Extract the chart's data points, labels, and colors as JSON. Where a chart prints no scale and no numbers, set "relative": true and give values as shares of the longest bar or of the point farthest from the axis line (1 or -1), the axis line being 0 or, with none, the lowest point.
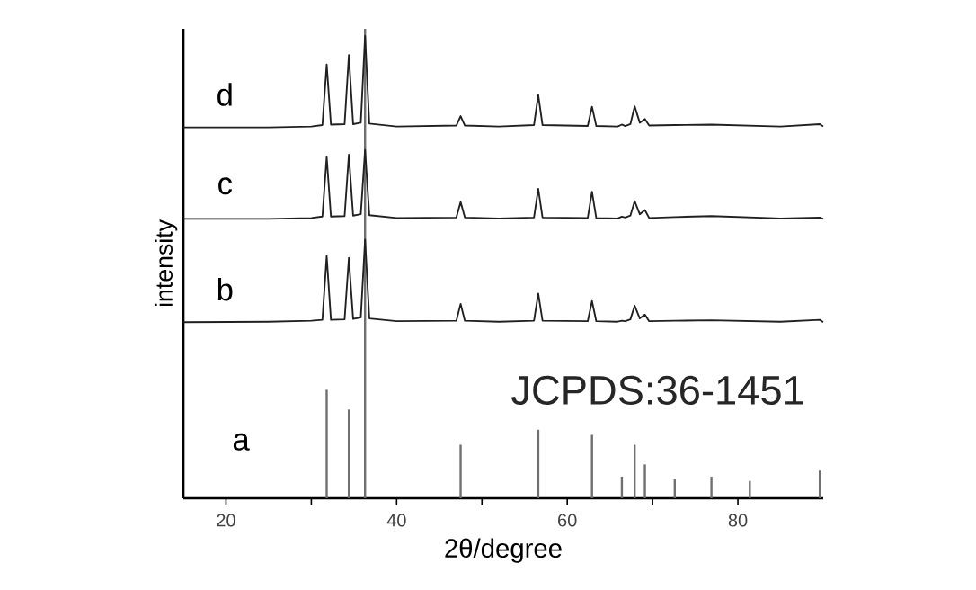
{
  "chart_data": {
    "type": "line",
    "relative": true,
    "xlabel": "2θ/degree",
    "ylabel": "intensity",
    "xlim": [
      15,
      90
    ],
    "xticks": [
      20,
      40,
      60,
      80,
      {
        "value": 30,
        "label": null
      },
      {
        "value": 50,
        "label": null
      },
      {
        "value": 70,
        "label": null
      }
    ],
    "marker": "none",
    "annotations": [
      "JCPDS:36-1451"
    ],
    "series": [
      {
        "name": "a",
        "type": "bar",
        "color": "#707070",
        "x": [
          31.8,
          34.4,
          36.3,
          47.5,
          56.6,
          62.9,
          66.4,
          67.9,
          69.1,
          72.6,
          76.9,
          81.4,
          89.6
        ],
        "values": [
          0.231,
          0.189,
          1.0,
          0.114,
          0.146,
          0.135,
          0.046,
          0.114,
          0.072,
          0.04,
          0.046,
          0.037,
          0.059
        ]
      },
      {
        "name": "b",
        "color": "#202020",
        "x": [
          15,
          25,
          30,
          31.3,
          31.8,
          32.3,
          33.9,
          34.4,
          34.9,
          35.8,
          36.3,
          36.8,
          40,
          47.0,
          47.5,
          48.0,
          52,
          56.1,
          56.6,
          57.1,
          62.4,
          62.9,
          63.4,
          65.9,
          66.4,
          66.8,
          67.4,
          67.9,
          68.5,
          69.1,
          69.6,
          72.6,
          76.9,
          85,
          89.6,
          90
        ],
        "values": [
          0.375,
          0.376,
          0.378,
          0.38,
          0.516,
          0.38,
          0.381,
          0.512,
          0.382,
          0.385,
          0.551,
          0.383,
          0.377,
          0.378,
          0.414,
          0.378,
          0.376,
          0.378,
          0.436,
          0.378,
          0.377,
          0.42,
          0.377,
          0.376,
          0.378,
          0.377,
          0.381,
          0.41,
          0.383,
          0.391,
          0.377,
          0.378,
          0.379,
          0.376,
          0.38,
          0.375
        ]
      },
      {
        "name": "c",
        "color": "#202020",
        "x": [
          15,
          25,
          30,
          31.3,
          31.8,
          32.3,
          33.9,
          34.4,
          34.9,
          35.8,
          36.3,
          36.8,
          40,
          47.0,
          47.5,
          48.0,
          52,
          56.1,
          56.6,
          57.1,
          62.4,
          62.9,
          63.4,
          65.9,
          66.4,
          66.8,
          67.4,
          67.9,
          68.5,
          69.1,
          69.6,
          72.6,
          76.9,
          85,
          89.6,
          90
        ],
        "values": [
          0.595,
          0.595,
          0.597,
          0.6,
          0.727,
          0.6,
          0.601,
          0.732,
          0.602,
          0.605,
          0.742,
          0.603,
          0.597,
          0.598,
          0.631,
          0.598,
          0.596,
          0.598,
          0.659,
          0.598,
          0.597,
          0.653,
          0.597,
          0.596,
          0.6,
          0.598,
          0.602,
          0.633,
          0.605,
          0.614,
          0.597,
          0.599,
          0.601,
          0.596,
          0.598,
          0.595
        ]
      },
      {
        "name": "d",
        "color": "#202020",
        "x": [
          15,
          25,
          30,
          31.3,
          31.8,
          32.3,
          33.9,
          34.4,
          34.9,
          35.8,
          36.3,
          36.8,
          40,
          47.0,
          47.5,
          48.0,
          52,
          56.1,
          56.6,
          57.1,
          62.4,
          62.9,
          63.4,
          65.9,
          66.4,
          66.8,
          67.4,
          67.9,
          68.5,
          69.1,
          69.6,
          72.6,
          76.9,
          85,
          89.6,
          90
        ],
        "values": [
          0.79,
          0.79,
          0.792,
          0.795,
          0.924,
          0.796,
          0.797,
          0.944,
          0.797,
          0.8,
          0.985,
          0.798,
          0.792,
          0.794,
          0.814,
          0.794,
          0.792,
          0.795,
          0.859,
          0.795,
          0.793,
          0.834,
          0.793,
          0.792,
          0.796,
          0.793,
          0.797,
          0.835,
          0.8,
          0.808,
          0.794,
          0.795,
          0.796,
          0.792,
          0.797,
          0.792
        ]
      }
    ]
  }
}
